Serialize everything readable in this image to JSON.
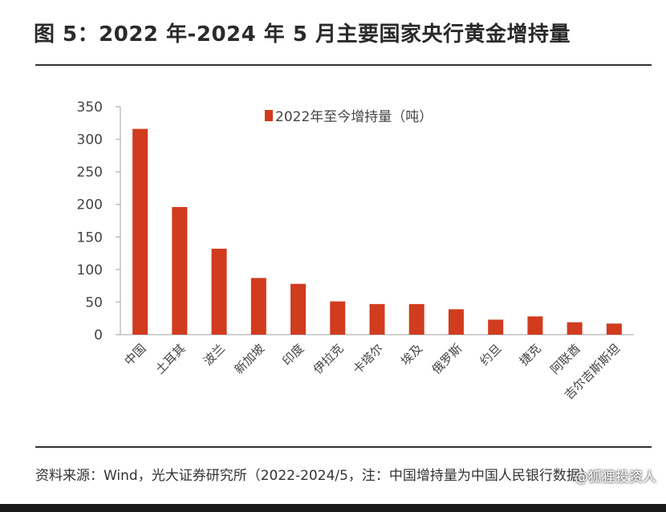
{
  "title": "图 5：2022 年-2024 年 5 月主要国家央行黄金增持量",
  "source": "资料来源：Wind，光大证券研究所（2022-2024/5，注：中国增持量为中国人民银行数据）",
  "watermark": "@狐狸投资人",
  "colors": {
    "bar": "#d13b1e",
    "axis": "#bfbfbf",
    "text": "#444444"
  },
  "chart_data": {
    "type": "bar",
    "title": "",
    "xlabel": "",
    "ylabel": "",
    "ylim": [
      0,
      350
    ],
    "yticks": [
      0,
      50,
      100,
      150,
      200,
      250,
      300,
      350
    ],
    "grid": false,
    "legend_position": "top",
    "categories": [
      "中国",
      "土耳其",
      "波兰",
      "新加坡",
      "印度",
      "伊拉克",
      "卡塔尔",
      "埃及",
      "俄罗斯",
      "约旦",
      "捷克",
      "阿联酋",
      "吉尔吉斯斯坦"
    ],
    "series": [
      {
        "name": "2022年至今增持量（吨）",
        "values": [
          316,
          196,
          132,
          87,
          78,
          51,
          47,
          47,
          39,
          23,
          28,
          19,
          17
        ]
      }
    ]
  }
}
